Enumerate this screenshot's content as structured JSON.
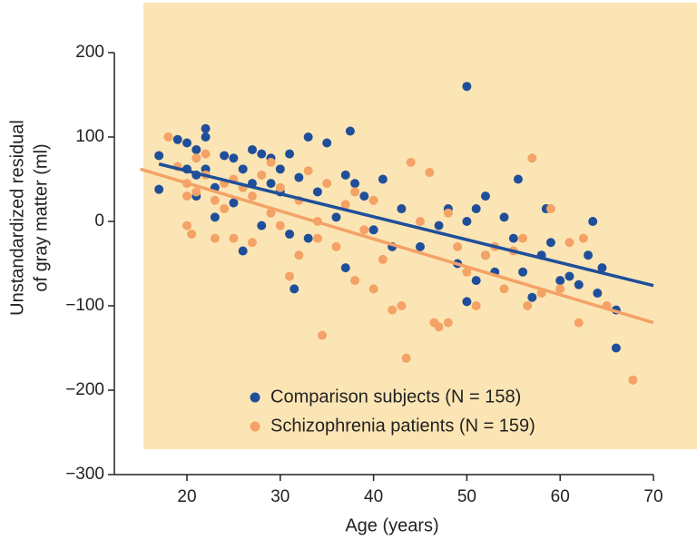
{
  "chart_data": {
    "type": "scatter",
    "xlabel": "Age (years)",
    "ylabel": [
      "Unstandardized residual",
      "of gray matter (ml)"
    ],
    "xlim": [
      12,
      72
    ],
    "ylim": [
      -300,
      200
    ],
    "xticks": [
      20,
      30,
      40,
      50,
      60,
      70
    ],
    "yticks": [
      200,
      100,
      0,
      {
        "value": -100,
        "label": "−100"
      },
      {
        "value": -200,
        "label": "−200"
      },
      {
        "value": -300,
        "label": "−300"
      }
    ],
    "legend": "lower left",
    "series": [
      {
        "name": "Comparison subjects (N = 158)",
        "color": "#1f4f9a",
        "x": [
          17,
          17,
          19,
          20,
          20,
          21,
          21,
          21,
          22,
          22,
          22,
          23,
          23,
          24,
          25,
          25,
          26,
          26,
          27,
          27,
          28,
          28,
          29,
          29,
          30,
          30,
          31,
          31,
          31.5,
          32,
          33,
          33,
          34,
          35,
          36,
          37,
          37,
          37.5,
          38,
          39,
          40,
          41,
          42,
          43,
          45,
          47,
          48,
          49,
          50,
          50,
          50,
          51,
          51,
          52,
          52,
          53,
          54,
          55,
          55.5,
          56,
          57,
          58,
          58.5,
          59,
          60,
          61,
          62,
          63,
          63.5,
          64,
          64.5,
          66,
          66
        ],
        "values": [
          38,
          78,
          97,
          93,
          62,
          85,
          55,
          30,
          110,
          100,
          62,
          40,
          5,
          78,
          75,
          22,
          62,
          -35,
          85,
          45,
          80,
          -5,
          75,
          45,
          62,
          35,
          80,
          -15,
          -80,
          52,
          100,
          -20,
          35,
          93,
          5,
          55,
          -55,
          107,
          45,
          30,
          -10,
          50,
          -30,
          15,
          -30,
          -5,
          15,
          -50,
          160,
          -95,
          0,
          -70,
          15,
          30,
          -40,
          -60,
          5,
          -20,
          50,
          -60,
          -90,
          -40,
          15,
          -25,
          -70,
          -65,
          -75,
          -40,
          0,
          -85,
          -55,
          -105,
          -150
        ],
        "trend": {
          "x": [
            17,
            70
          ],
          "values": [
            68,
            -76
          ]
        }
      },
      {
        "name": "Schizophrenia patients (N = 159)",
        "color": "#f4a266",
        "x": [
          18,
          19,
          20,
          20,
          20,
          20.5,
          21,
          21,
          22,
          22,
          23,
          23,
          24,
          24,
          25,
          25,
          26,
          27,
          27,
          28,
          29,
          29,
          30,
          30,
          31,
          32,
          32,
          33,
          34,
          34,
          34.5,
          35,
          36,
          37,
          38,
          38,
          39,
          40,
          40,
          41,
          42,
          43,
          43.5,
          44,
          45,
          46,
          46.5,
          47,
          48,
          48,
          49,
          50,
          51,
          52,
          53,
          54,
          55,
          56,
          56.5,
          57,
          58,
          59,
          60,
          61,
          62,
          62.5,
          65,
          67.8
        ],
        "values": [
          100,
          65,
          45,
          30,
          -5,
          -15,
          35,
          75,
          80,
          55,
          25,
          -20,
          15,
          45,
          50,
          -20,
          40,
          30,
          -25,
          55,
          70,
          10,
          40,
          -5,
          -65,
          25,
          -40,
          60,
          0,
          -20,
          -135,
          45,
          -30,
          20,
          35,
          -70,
          -10,
          25,
          -80,
          -45,
          -105,
          -100,
          -162,
          70,
          0,
          58,
          -120,
          -125,
          -120,
          10,
          -30,
          -60,
          -100,
          -40,
          -30,
          -80,
          -35,
          -20,
          -100,
          75,
          -85,
          15,
          -80,
          -25,
          -120,
          -20,
          -100,
          -188
        ],
        "trend": {
          "x": [
            15,
            70
          ],
          "values": [
            62,
            -120
          ]
        }
      }
    ]
  }
}
